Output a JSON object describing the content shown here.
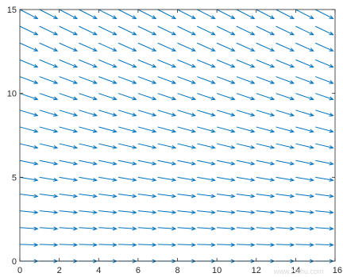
{
  "chart_data": {
    "type": "quiver",
    "title": "",
    "xlabel": "",
    "ylabel": "",
    "xlim": [
      0,
      16
    ],
    "ylim": [
      0,
      15
    ],
    "xticks": [
      0,
      2,
      4,
      6,
      8,
      10,
      12,
      14,
      16
    ],
    "yticks": [
      0,
      5,
      10,
      15
    ],
    "grid": false,
    "box": true,
    "field": {
      "x": [
        0,
        1,
        2,
        3,
        4,
        5,
        6,
        7,
        8,
        9,
        10,
        11,
        12,
        13,
        14,
        15
      ],
      "y": [
        0,
        1,
        2,
        3,
        4,
        5,
        6,
        7,
        8,
        9,
        10,
        11,
        12,
        13,
        14,
        15
      ],
      "u": 1,
      "v": "-0.04*y",
      "description_rule": "u = 1, v = -0.04*y"
    },
    "color": "#0072bd",
    "axis_color": "#262626"
  },
  "watermark": "www.zhihu.com"
}
